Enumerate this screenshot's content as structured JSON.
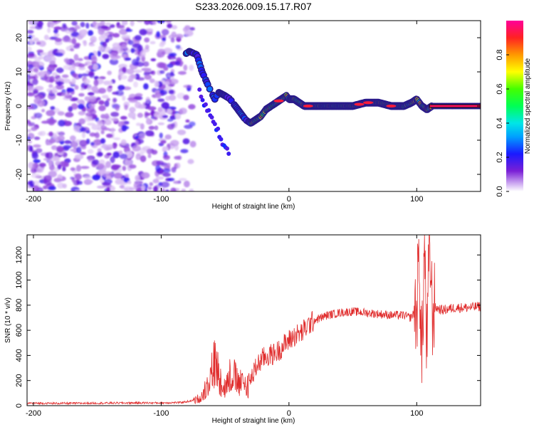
{
  "chart_data": [
    {
      "type": "heatmap",
      "title": "S233.2026.009.15.17.R07",
      "xlabel": "Height of straight line (km)",
      "ylabel": "Frequency (Hz)",
      "xlim": [
        -205,
        150
      ],
      "ylim": [
        -25,
        25
      ],
      "xticks": [
        -200,
        -100,
        0,
        100
      ],
      "yticks": [
        -20,
        -10,
        0,
        10,
        20
      ],
      "colorbar": {
        "label": "Normalized spectral amplitude",
        "range": [
          0,
          1
        ],
        "ticks": [
          0.0,
          0.2,
          0.4,
          0.6,
          0.8
        ]
      },
      "frequency_track": {
        "x": [
          -82,
          -78,
          -72,
          -68,
          -62,
          -58,
          -55,
          -50,
          -46,
          -42,
          -38,
          -34,
          -30,
          -26,
          -22,
          -18,
          -14,
          -10,
          -6,
          -2,
          0,
          4,
          8,
          12,
          16,
          20,
          30,
          40,
          50,
          60,
          70,
          80,
          90,
          96,
          100,
          104,
          108,
          112,
          120,
          130,
          140,
          150
        ],
        "y": [
          15,
          16,
          15,
          10,
          5,
          2,
          4,
          3,
          2,
          0,
          -2,
          -4,
          -5,
          -4,
          -3,
          -1,
          0,
          1,
          2,
          3,
          2,
          2,
          1,
          0,
          0,
          0,
          0,
          0,
          0,
          1,
          1,
          0,
          0,
          1,
          2,
          0,
          -1,
          0,
          0,
          0,
          0,
          0
        ]
      },
      "noise_region_x": [
        -205,
        -80
      ]
    },
    {
      "type": "line",
      "xlabel": "Height of straight line (km)",
      "ylabel": "SNR (10 * v/v)",
      "xlim": [
        -205,
        150
      ],
      "ylim": [
        0,
        1360
      ],
      "xticks": [
        -200,
        -100,
        0,
        100
      ],
      "yticks": [
        0,
        200,
        400,
        600,
        800,
        1000,
        1200
      ],
      "series": [
        {
          "name": "SNR",
          "color": "#e02b2b",
          "x": [
            -205,
            -180,
            -150,
            -120,
            -100,
            -85,
            -75,
            -68,
            -62,
            -58,
            -54,
            -50,
            -45,
            -40,
            -35,
            -30,
            -25,
            -20,
            -15,
            -10,
            -5,
            0,
            5,
            10,
            15,
            20,
            25,
            30,
            40,
            50,
            60,
            70,
            80,
            90,
            95,
            100,
            102,
            104,
            106,
            108,
            110,
            112,
            115,
            120,
            130,
            140,
            150
          ],
          "values": [
            20,
            18,
            20,
            22,
            22,
            25,
            40,
            80,
            250,
            380,
            250,
            150,
            300,
            200,
            180,
            200,
            320,
            380,
            400,
            420,
            470,
            520,
            560,
            580,
            640,
            680,
            700,
            720,
            740,
            750,
            740,
            730,
            720,
            720,
            700,
            760,
            1200,
            300,
            1300,
            400,
            1380,
            760,
            780,
            760,
            780,
            780,
            790
          ]
        }
      ]
    }
  ],
  "figure": {
    "title": "S233.2026.009.15.17.R07"
  }
}
